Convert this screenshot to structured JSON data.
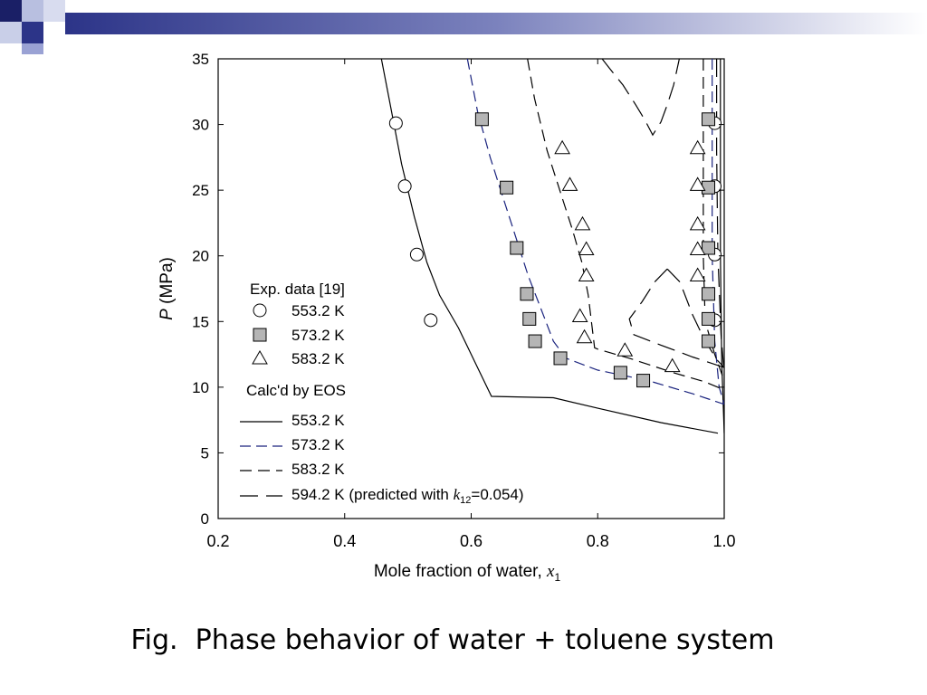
{
  "slide": {
    "caption": "Fig.  Phase behavior of water + toluene system",
    "accent_color": "#3a3f8f"
  },
  "chart_data": {
    "type": "scatter",
    "xlabel": "Mole fraction of water, x1",
    "xlabel_main": "Mole fraction of water, ",
    "xlabel_var": "x",
    "xlabel_sub": "1",
    "ylabel": "P (MPa)",
    "ylabel_var": "P",
    "ylabel_unit": " (MPa)",
    "xlim": [
      0.2,
      1.0
    ],
    "ylim": [
      0,
      35
    ],
    "xticks": [
      0.2,
      0.4,
      0.6,
      0.8,
      1.0
    ],
    "xtick_labels": [
      "0.2",
      "0.4",
      "0.6",
      "0.8",
      "1.0"
    ],
    "yticks": [
      0,
      5,
      10,
      15,
      20,
      25,
      30,
      35
    ],
    "ytick_labels": [
      "0",
      "5",
      "10",
      "15",
      "20",
      "25",
      "30",
      "35"
    ],
    "grid": false,
    "legend": {
      "placement": "lower-left inside",
      "exp_header": "Exp. data [19]",
      "calc_header": "Calc'd by EOS",
      "entries": [
        {
          "marker": "circle",
          "label": "553.2 K"
        },
        {
          "marker": "square",
          "label": "573.2 K"
        },
        {
          "marker": "triangle",
          "label": "583.2 K"
        },
        {
          "line": "solid",
          "label": "553.2 K"
        },
        {
          "line": "blue-dash",
          "label": "573.2 K"
        },
        {
          "line": "dash",
          "label": "583.2 K"
        },
        {
          "line": "long-dash",
          "label_prefix": "594.2 K (predicted with ",
          "label_k": "k",
          "label_k_sub": "12",
          "label_suffix": "=0.054)"
        }
      ]
    },
    "experimental_series": [
      {
        "name": "553.2 K",
        "marker": "circle",
        "points": [
          [
            0.481,
            30.1
          ],
          [
            0.495,
            25.3
          ],
          [
            0.514,
            20.1
          ],
          [
            0.536,
            15.1
          ],
          [
            0.985,
            30.1
          ],
          [
            0.985,
            25.3
          ],
          [
            0.985,
            20.1
          ],
          [
            0.985,
            15.1
          ]
        ]
      },
      {
        "name": "573.2 K",
        "marker": "square",
        "points": [
          [
            0.617,
            30.4
          ],
          [
            0.656,
            25.2
          ],
          [
            0.672,
            20.6
          ],
          [
            0.688,
            17.1
          ],
          [
            0.692,
            15.2
          ],
          [
            0.701,
            13.5
          ],
          [
            0.741,
            12.2
          ],
          [
            0.836,
            11.1
          ],
          [
            0.872,
            10.5
          ],
          [
            0.975,
            30.4
          ],
          [
            0.975,
            25.2
          ],
          [
            0.975,
            20.6
          ],
          [
            0.975,
            17.1
          ],
          [
            0.975,
            15.2
          ],
          [
            0.975,
            13.5
          ]
        ]
      },
      {
        "name": "583.2 K",
        "marker": "triangle",
        "points": [
          [
            0.744,
            28.2
          ],
          [
            0.756,
            25.4
          ],
          [
            0.776,
            22.4
          ],
          [
            0.782,
            20.5
          ],
          [
            0.782,
            18.5
          ],
          [
            0.772,
            15.4
          ],
          [
            0.779,
            13.8
          ],
          [
            0.843,
            12.8
          ],
          [
            0.918,
            11.6
          ],
          [
            0.958,
            28.2
          ],
          [
            0.958,
            25.4
          ],
          [
            0.958,
            22.4
          ],
          [
            0.958,
            20.5
          ],
          [
            0.958,
            18.5
          ]
        ]
      }
    ],
    "calculated_series": [
      {
        "name": "553.2 K",
        "style": "solid",
        "color": "#000000",
        "segments": [
          [
            [
              0.458,
              35
            ],
            [
              0.47,
              32
            ],
            [
              0.49,
              27
            ],
            [
              0.51,
              23
            ],
            [
              0.53,
              19.5
            ],
            [
              0.55,
              17
            ],
            [
              0.58,
              14.5
            ],
            [
              0.61,
              11.5
            ],
            [
              0.632,
              9.3
            ],
            [
              0.73,
              9.2
            ],
            [
              0.8,
              8.4
            ],
            [
              0.9,
              7.3
            ],
            [
              0.99,
              6.5
            ]
          ],
          [
            [
              0.994,
              35
            ],
            [
              0.994,
              20
            ],
            [
              0.996,
              12
            ],
            [
              1.0,
              6.5
            ]
          ]
        ]
      },
      {
        "name": "573.2 K",
        "style": "blue-dash",
        "color": "#1a237e",
        "segments": [
          [
            [
              0.594,
              35
            ],
            [
              0.61,
              31
            ],
            [
              0.63,
              27.5
            ],
            [
              0.65,
              24.5
            ],
            [
              0.67,
              21.5
            ],
            [
              0.69,
              18.5
            ],
            [
              0.71,
              16
            ],
            [
              0.73,
              13.5
            ],
            [
              0.75,
              12.2
            ],
            [
              0.8,
              11.3
            ],
            [
              0.88,
              10.5
            ],
            [
              0.95,
              9.5
            ],
            [
              1.0,
              8.7
            ]
          ],
          [
            [
              0.981,
              35
            ],
            [
              0.981,
              20
            ],
            [
              0.985,
              13.5
            ],
            [
              0.992,
              10
            ],
            [
              1.0,
              8.7
            ]
          ]
        ]
      },
      {
        "name": "583.2 K",
        "style": "dash",
        "color": "#000000",
        "segments": [
          [
            [
              0.689,
              35
            ],
            [
              0.7,
              32
            ],
            [
              0.72,
              28
            ],
            [
              0.74,
              25
            ],
            [
              0.76,
              22
            ],
            [
              0.775,
              19.5
            ],
            [
              0.785,
              17
            ],
            [
              0.79,
              15
            ],
            [
              0.795,
              13
            ],
            [
              0.8,
              12.9
            ],
            [
              0.85,
              12.2
            ],
            [
              0.92,
              11.1
            ],
            [
              0.97,
              10.4
            ],
            [
              1.0,
              9.8
            ]
          ],
          [
            [
              0.967,
              35
            ],
            [
              0.967,
              20
            ],
            [
              0.97,
              15
            ],
            [
              0.985,
              12.5
            ],
            [
              1.0,
              10.5
            ]
          ]
        ]
      },
      {
        "name": "594.2 K (predicted with k12=0.054)",
        "style": "long-dash",
        "color": "#000000",
        "segments": [
          [
            [
              0.807,
              35
            ],
            [
              0.82,
              34.2
            ],
            [
              0.84,
              33
            ],
            [
              0.86,
              31.5
            ],
            [
              0.875,
              30.3
            ],
            [
              0.887,
              29.2
            ],
            [
              0.9,
              30.2
            ],
            [
              0.91,
              31.5
            ],
            [
              0.92,
              33
            ],
            [
              0.929,
              35
            ]
          ],
          [
            [
              0.988,
              35
            ],
            [
              0.988,
              28
            ],
            [
              0.99,
              20
            ],
            [
              0.995,
              14
            ],
            [
              1.0,
              11
            ]
          ],
          [
            [
              0.91,
              19
            ],
            [
              0.93,
              18
            ],
            [
              0.95,
              15.5
            ],
            [
              0.97,
              13.5
            ],
            [
              0.99,
              12
            ],
            [
              1.0,
              11.5
            ]
          ],
          [
            [
              0.91,
              19
            ],
            [
              0.89,
              18
            ],
            [
              0.87,
              16.5
            ],
            [
              0.85,
              15.2
            ],
            [
              0.857,
              14
            ],
            [
              0.9,
              13.2
            ],
            [
              0.95,
              12.3
            ],
            [
              1.0,
              11.5
            ]
          ]
        ]
      }
    ]
  }
}
